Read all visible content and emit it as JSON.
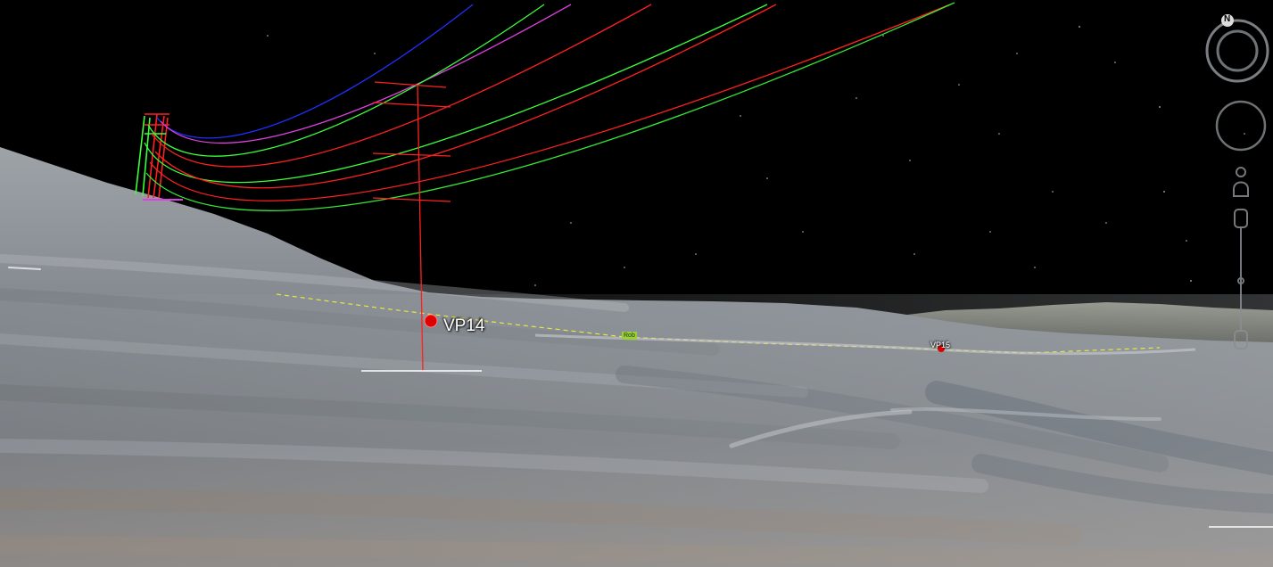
{
  "placemarks": [
    {
      "label": "VP14",
      "color": "#e00000"
    },
    {
      "label": "VP15",
      "color": "#e00000"
    },
    {
      "label": "Rob",
      "color": "#9bcf3a"
    }
  ],
  "navigation": {
    "compass_north_label": "N",
    "icons": [
      "look-around-icon",
      "move-joystick-icon",
      "street-view-pegman-icon",
      "zoom-plus-icon",
      "zoom-slider-icon",
      "zoom-minus-icon"
    ]
  },
  "colors": {
    "sky": "#000000",
    "conductor_red": "#ff2020",
    "conductor_green": "#3cff3c",
    "conductor_blue": "#2030ff",
    "conductor_magenta": "#e040e0",
    "path_line": "#e8e840",
    "terrain": "#8a8f94"
  }
}
